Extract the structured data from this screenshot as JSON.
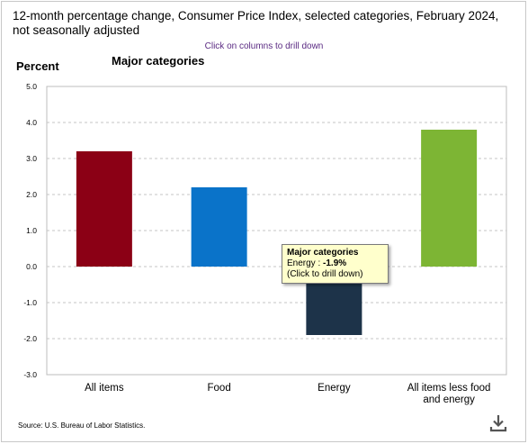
{
  "chart_data": {
    "type": "bar",
    "title": "12-month percentage change, Consumer Price Index, selected categories, February 2024, not seasonally adjusted",
    "hint": "Click on columns to drill down",
    "ylabel": "Percent",
    "subtitle": "Major categories",
    "ylim": [
      -3.0,
      5.0
    ],
    "yticks": [
      "5.0",
      "4.0",
      "3.0",
      "2.0",
      "1.0",
      "0.0",
      "-1.0",
      "-2.0",
      "-3.0"
    ],
    "ytick_values": [
      5,
      4,
      3,
      2,
      1,
      0,
      -1,
      -2,
      -3
    ],
    "grid": true,
    "categories": [
      "All items",
      "Food",
      "Energy",
      "All items less food and energy"
    ],
    "category_lines": [
      [
        "All items"
      ],
      [
        "Food"
      ],
      [
        "Energy"
      ],
      [
        "All items less food",
        "and energy"
      ]
    ],
    "values": [
      3.2,
      2.2,
      -1.9,
      3.8
    ],
    "colors": [
      "#8b0015",
      "#0a73c9",
      "#1d3349",
      "#7db534"
    ],
    "source": "Source: U.S. Bureau of Labor Statistics."
  },
  "tooltip": {
    "title": "Major categories",
    "label": "Energy : ",
    "value": "-1.9%",
    "action": "(Click to drill down)"
  },
  "icons": {
    "download": "download-icon"
  }
}
